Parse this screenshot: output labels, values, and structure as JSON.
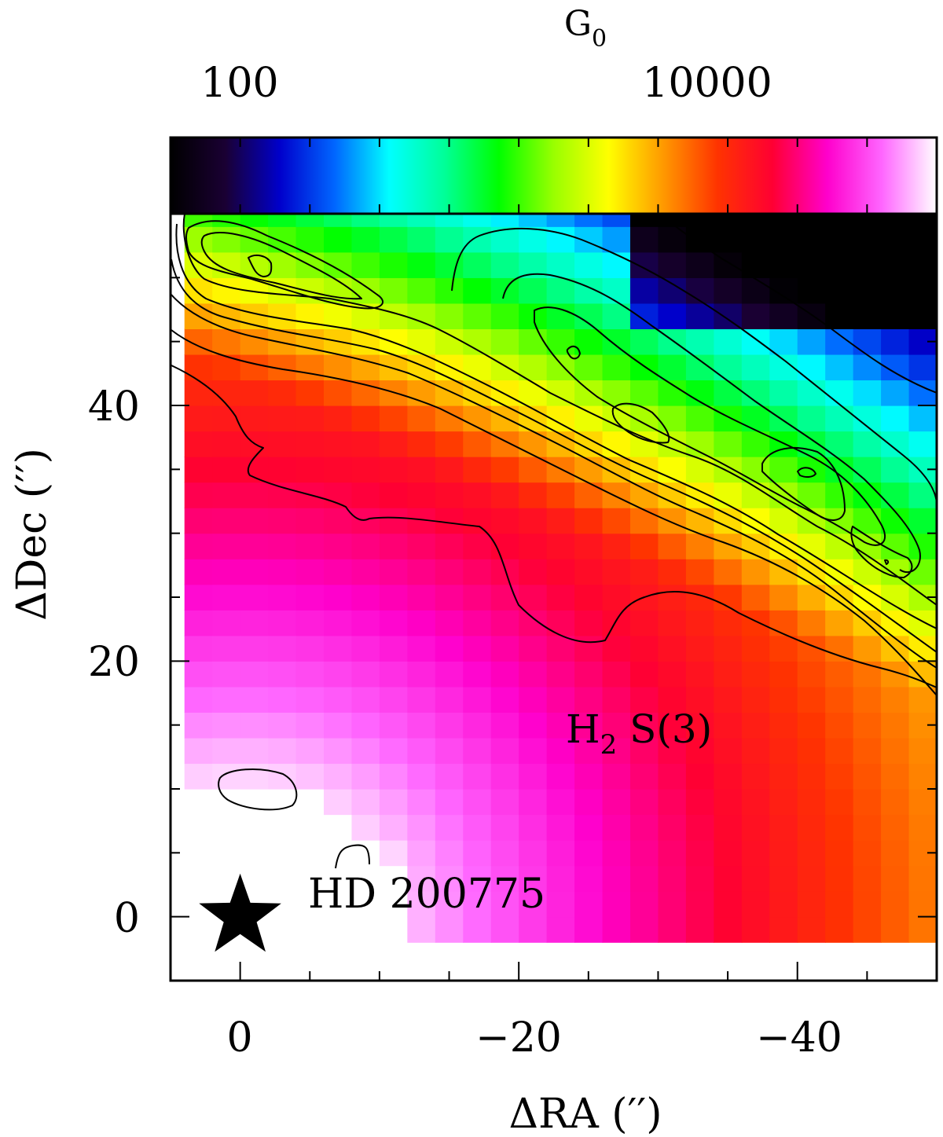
{
  "chart_data": {
    "type": "heatmap",
    "title": "",
    "xlabel": "ΔRA (′′)",
    "ylabel": "ΔDec (′′)",
    "xlim": [
      5,
      -50
    ],
    "ylim": [
      -5,
      55
    ],
    "x_ticks": [
      0,
      -20,
      -40
    ],
    "x_tick_labels": [
      "0",
      "−20",
      "−40"
    ],
    "y_ticks": [
      0,
      20,
      40
    ],
    "y_tick_labels": [
      "0",
      "20",
      "40"
    ],
    "colorbar": {
      "label": "G",
      "label_subscript": "0",
      "scale": "log",
      "range": [
        10,
        300000
      ],
      "tick_labels": [
        "100",
        "10000"
      ],
      "colormap": [
        "#000000",
        "#1a0033",
        "#0000cc",
        "#0066ff",
        "#00ffff",
        "#00ff99",
        "#00ff00",
        "#99ff00",
        "#ffff00",
        "#ff9900",
        "#ff3300",
        "#ff0033",
        "#ff00cc",
        "#ff66ff",
        "#ffffff"
      ]
    },
    "annotations": [
      {
        "text": "H",
        "sub": "2",
        "rest": " S(3)",
        "x": -24,
        "y": 15,
        "type": "tracer-label"
      },
      {
        "text": "HD 200775",
        "x": -5,
        "y": 1.5,
        "type": "source-label"
      }
    ],
    "star_marker": {
      "x": 0,
      "y": 0,
      "name": "HD 200775"
    },
    "grid": false
  }
}
